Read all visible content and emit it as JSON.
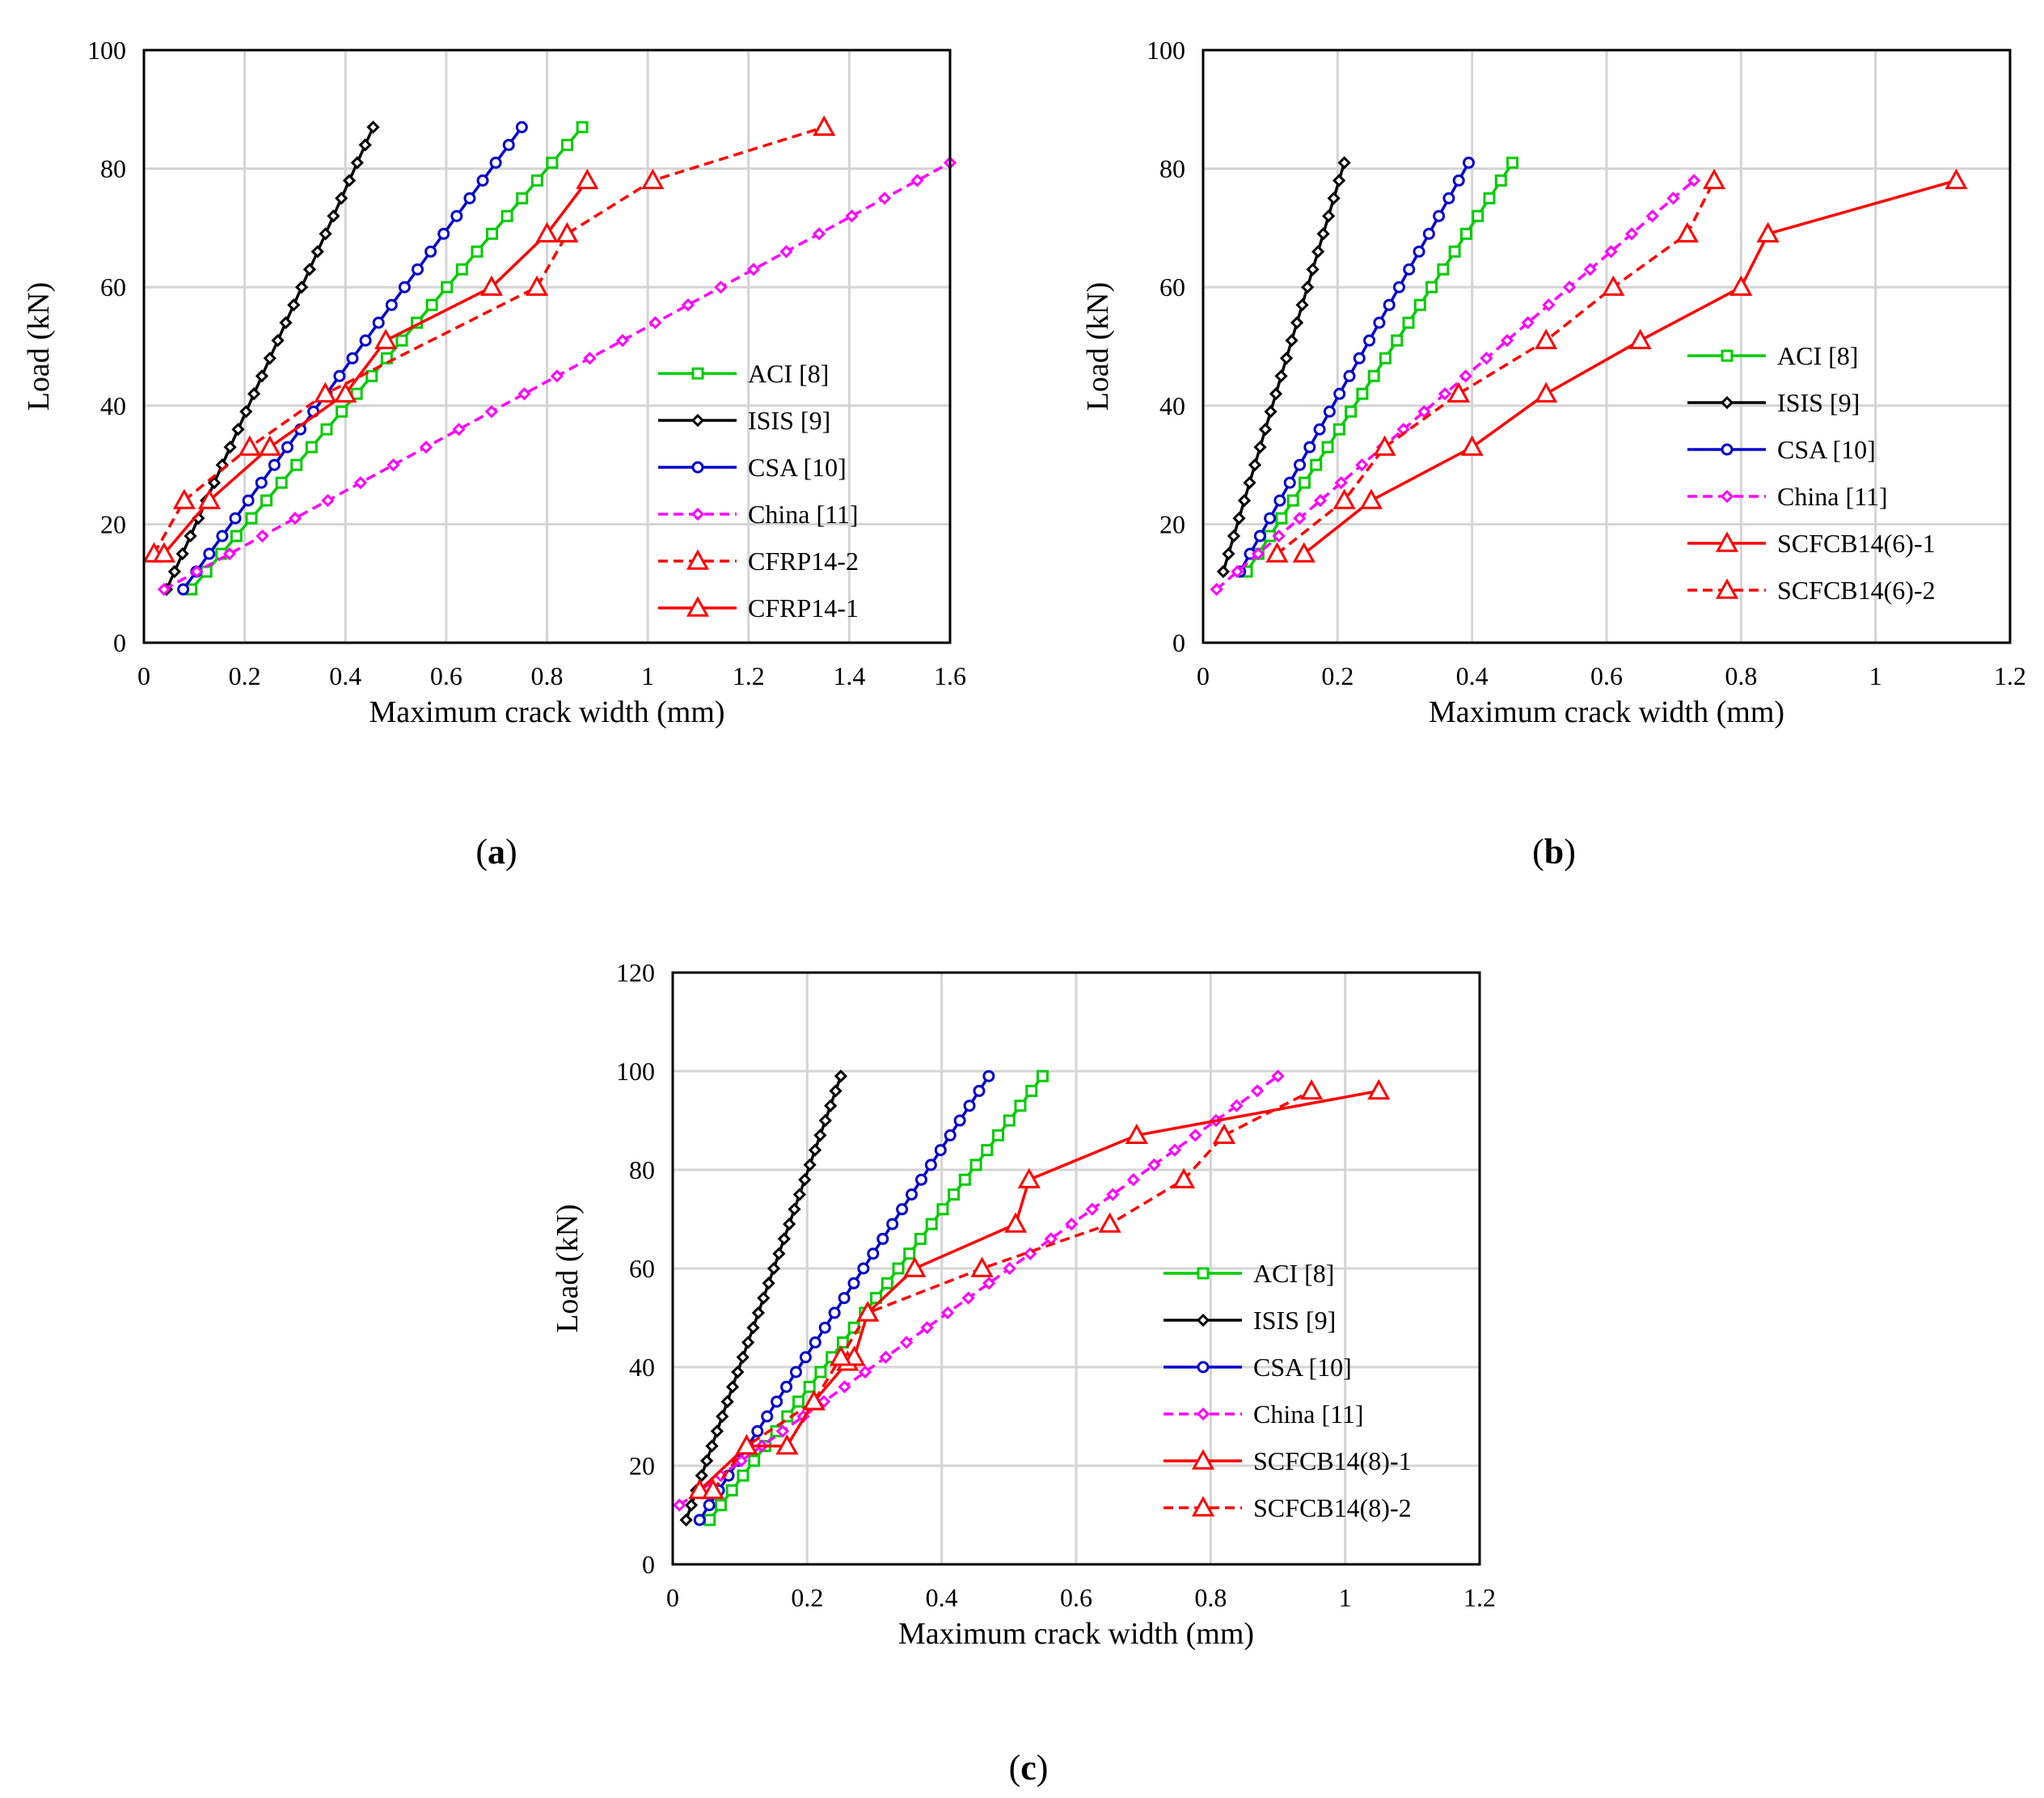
{
  "chart_data": [
    {
      "type": "line",
      "panel_label": "a",
      "xlabel": "Maximum crack width (mm)",
      "ylabel": "Load (kN)",
      "xlim": [
        0,
        1.6
      ],
      "ylim": [
        0,
        100
      ],
      "xticks": [
        "0",
        "0.2",
        "0.4",
        "0.6",
        "0.8",
        "1",
        "1.2",
        "1.4",
        "1.6"
      ],
      "yticks": [
        "0",
        "20",
        "40",
        "60",
        "80",
        "100"
      ],
      "grid": true,
      "legend_position": "lower-right",
      "series": [
        {
          "name": "ACI [8]",
          "color": "#00cc00",
          "marker": "square",
          "dash": "solid",
          "dense": true,
          "x": [
            0.094,
            0.87
          ],
          "y": [
            9,
            87
          ]
        },
        {
          "name": "ISIS [9]",
          "color": "#000000",
          "marker": "diamond",
          "dash": "solid",
          "dense": true,
          "x": [
            0.045,
            0.455
          ],
          "y": [
            9,
            87
          ]
        },
        {
          "name": "CSA [10]",
          "color": "#0000cc",
          "marker": "circle",
          "dash": "solid",
          "dense": true,
          "x": [
            0.078,
            0.75
          ],
          "y": [
            9,
            87
          ]
        },
        {
          "name": "China [11]",
          "color": "#ff00ff",
          "marker": "diamond",
          "dash": "dashed",
          "dense": true,
          "x": [
            0.04,
            1.6
          ],
          "y": [
            9,
            81
          ]
        },
        {
          "name": "CFRP14-2",
          "color": "#ff0000",
          "marker": "triangle",
          "dash": "dashed",
          "dense": false,
          "x": [
            0.02,
            0.08,
            0.21,
            0.36,
            0.78,
            0.84,
            1.01,
            1.35
          ],
          "y": [
            15,
            24,
            33,
            42,
            60,
            69,
            78,
            87
          ]
        },
        {
          "name": "CFRP14-1",
          "color": "#ff0000",
          "marker": "triangle",
          "dash": "solid",
          "dense": false,
          "x": [
            0.04,
            0.13,
            0.25,
            0.4,
            0.48,
            0.69,
            0.8,
            0.88
          ],
          "y": [
            15,
            24,
            33,
            42,
            51,
            60,
            69,
            78
          ]
        }
      ]
    },
    {
      "type": "line",
      "panel_label": "b",
      "xlabel": "Maximum crack width (mm)",
      "ylabel": "Load (kN)",
      "xlim": [
        0,
        1.2
      ],
      "ylim": [
        0,
        100
      ],
      "xticks": [
        "0",
        "0.2",
        "0.4",
        "0.6",
        "0.8",
        "1",
        "1.2"
      ],
      "yticks": [
        "0",
        "20",
        "40",
        "60",
        "80",
        "100"
      ],
      "grid": true,
      "legend_position": "lower-right",
      "series": [
        {
          "name": "ACI [8]",
          "color": "#00cc00",
          "marker": "square",
          "dash": "solid",
          "dense": true,
          "x": [
            0.065,
            0.46
          ],
          "y": [
            12,
            81
          ]
        },
        {
          "name": "ISIS [9]",
          "color": "#000000",
          "marker": "diamond",
          "dash": "solid",
          "dense": true,
          "x": [
            0.03,
            0.21
          ],
          "y": [
            12,
            81
          ]
        },
        {
          "name": "CSA [10]",
          "color": "#0000cc",
          "marker": "circle",
          "dash": "solid",
          "dense": true,
          "x": [
            0.055,
            0.395
          ],
          "y": [
            12,
            81
          ]
        },
        {
          "name": "China [11]",
          "color": "#ff00ff",
          "marker": "diamond",
          "dash": "dashed",
          "dense": true,
          "x": [
            0.02,
            0.73
          ],
          "y": [
            9,
            78
          ]
        },
        {
          "name": "SCFCB14(6)-1",
          "color": "#ff0000",
          "marker": "triangle",
          "dash": "solid",
          "dense": false,
          "x": [
            0.15,
            0.25,
            0.4,
            0.51,
            0.65,
            0.8,
            0.84,
            1.12
          ],
          "y": [
            15,
            24,
            33,
            42,
            51,
            60,
            69,
            78
          ]
        },
        {
          "name": "SCFCB14(6)-2",
          "color": "#ff0000",
          "marker": "triangle",
          "dash": "dashed",
          "dense": false,
          "x": [
            0.11,
            0.21,
            0.27,
            0.38,
            0.51,
            0.61,
            0.72,
            0.76
          ],
          "y": [
            15,
            24,
            33,
            42,
            51,
            60,
            69,
            78
          ]
        }
      ]
    },
    {
      "type": "line",
      "panel_label": "c",
      "xlabel": "Maximum crack width (mm)",
      "ylabel": "Load (kN)",
      "xlim": [
        0,
        1.2
      ],
      "ylim": [
        0,
        120
      ],
      "xticks": [
        "0",
        "0.2",
        "0.4",
        "0.6",
        "0.8",
        "1",
        "1.2"
      ],
      "yticks": [
        "0",
        "20",
        "40",
        "60",
        "80",
        "100",
        "120"
      ],
      "grid": true,
      "legend_position": "lower-right",
      "series": [
        {
          "name": "ACI [8]",
          "color": "#00cc00",
          "marker": "square",
          "dash": "solid",
          "dense": true,
          "x": [
            0.055,
            0.55
          ],
          "y": [
            9,
            99
          ]
        },
        {
          "name": "ISIS [9]",
          "color": "#000000",
          "marker": "diamond",
          "dash": "solid",
          "dense": true,
          "x": [
            0.02,
            0.25
          ],
          "y": [
            9,
            99
          ]
        },
        {
          "name": "CSA [10]",
          "color": "#0000cc",
          "marker": "circle",
          "dash": "solid",
          "dense": true,
          "x": [
            0.04,
            0.47
          ],
          "y": [
            9,
            99
          ]
        },
        {
          "name": "China [11]",
          "color": "#ff00ff",
          "marker": "diamond",
          "dash": "dashed",
          "dense": true,
          "x": [
            0.01,
            0.9
          ],
          "y": [
            12,
            99
          ]
        },
        {
          "name": "SCFCB14(8)-1",
          "color": "#ff0000",
          "marker": "triangle",
          "dash": "solid",
          "dense": false,
          "x": [
            0.04,
            0.11,
            0.17,
            0.21,
            0.26,
            0.27,
            0.29,
            0.36,
            0.51,
            0.53,
            0.69,
            1.05
          ],
          "y": [
            15,
            24,
            24,
            33,
            41,
            42,
            51,
            60,
            69,
            78,
            87,
            96
          ]
        },
        {
          "name": "SCFCB14(8)-2",
          "color": "#ff0000",
          "marker": "triangle",
          "dash": "dashed",
          "dense": false,
          "x": [
            0.06,
            0.11,
            0.21,
            0.25,
            0.29,
            0.46,
            0.65,
            0.76,
            0.82,
            0.95
          ],
          "y": [
            15,
            24,
            33,
            42,
            51,
            60,
            69,
            78,
            87,
            96
          ]
        }
      ]
    }
  ]
}
